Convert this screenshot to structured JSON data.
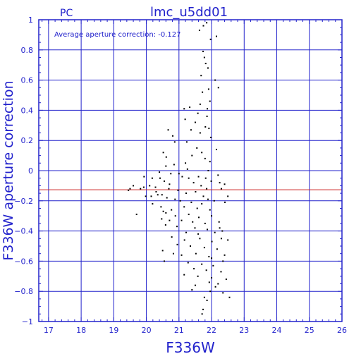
{
  "chart_data": {
    "type": "scatter",
    "title": "lmc_u5dd01",
    "corner_label": "PC",
    "annotation": "Average aperture correction: -0.127",
    "xlabel": "F336W",
    "ylabel": "F336W aperture correction",
    "xlim": [
      16.7,
      26
    ],
    "ylim": [
      -1,
      1
    ],
    "x_ticks": [
      17,
      18,
      19,
      20,
      21,
      22,
      23,
      24,
      25,
      26
    ],
    "y_ticks": [
      -1,
      -0.8,
      -0.6,
      -0.4,
      -0.2,
      0,
      0.2,
      0.4,
      0.6,
      0.8,
      1
    ],
    "y_tick_labels": [
      "−1",
      "−0.8",
      "−0.6",
      "−0.4",
      "−0.2",
      "0",
      "0.2",
      "0.4",
      "0.6",
      "0.8",
      "1"
    ],
    "grid": true,
    "reference_line": {
      "y": -0.127,
      "color": "#cc2222"
    },
    "colors": {
      "axes": "#2222cc",
      "grid": "#2222cc",
      "points": "#000000"
    },
    "series": [
      {
        "points": [
          [
            21.85,
            0.98
          ],
          [
            21.63,
            0.93
          ],
          [
            21.75,
            0.96
          ],
          [
            21.97,
            0.87
          ],
          [
            22.15,
            0.89
          ],
          [
            21.74,
            0.79
          ],
          [
            21.78,
            0.75
          ],
          [
            21.82,
            0.71
          ],
          [
            21.89,
            0.68
          ],
          [
            22.11,
            0.6
          ],
          [
            21.68,
            0.63
          ],
          [
            21.91,
            0.54
          ],
          [
            21.72,
            0.52
          ],
          [
            22.21,
            0.55
          ],
          [
            21.65,
            0.44
          ],
          [
            21.87,
            0.41
          ],
          [
            21.95,
            0.46
          ],
          [
            21.33,
            0.42
          ],
          [
            21.16,
            0.41
          ],
          [
            21.58,
            0.38
          ],
          [
            21.86,
            0.36
          ],
          [
            21.19,
            0.34
          ],
          [
            21.5,
            0.32
          ],
          [
            21.81,
            0.29
          ],
          [
            21.37,
            0.27
          ],
          [
            21.65,
            0.25
          ],
          [
            21.92,
            0.28
          ],
          [
            21.98,
            0.22
          ],
          [
            20.67,
            0.27
          ],
          [
            20.81,
            0.23
          ],
          [
            20.87,
            0.19
          ],
          [
            21.24,
            0.19
          ],
          [
            21.55,
            0.15
          ],
          [
            21.7,
            0.12
          ],
          [
            22.15,
            0.14
          ],
          [
            21.4,
            0.1
          ],
          [
            21.8,
            0.08
          ],
          [
            20.52,
            0.12
          ],
          [
            20.61,
            0.09
          ],
          [
            20.85,
            0.04
          ],
          [
            21.2,
            0.05
          ],
          [
            21.95,
            0.06
          ],
          [
            21.26,
            0.01
          ],
          [
            21.9,
            0.0
          ],
          [
            20.6,
            0.03
          ],
          [
            20.4,
            -0.01
          ],
          [
            20.75,
            -0.02
          ],
          [
            21.1,
            -0.04
          ],
          [
            21.6,
            -0.04
          ],
          [
            22.2,
            -0.03
          ],
          [
            21.82,
            -0.05
          ],
          [
            19.93,
            -0.04
          ],
          [
            20.18,
            -0.05
          ],
          [
            20.42,
            -0.05
          ],
          [
            20.55,
            -0.07
          ],
          [
            20.71,
            -0.09
          ],
          [
            21.45,
            -0.08
          ],
          [
            21.99,
            -0.07
          ],
          [
            22.25,
            -0.08
          ],
          [
            22.4,
            -0.09
          ],
          [
            20.1,
            -0.1
          ],
          [
            20.28,
            -0.11
          ],
          [
            20.69,
            -0.12
          ],
          [
            20.97,
            -0.13
          ],
          [
            21.68,
            -0.1
          ],
          [
            21.85,
            -0.12
          ],
          [
            22.3,
            -0.12
          ],
          [
            19.5,
            -0.12
          ],
          [
            19.6,
            -0.1
          ],
          [
            19.82,
            -0.12
          ],
          [
            19.92,
            -0.11
          ],
          [
            20.3,
            -0.14
          ],
          [
            20.35,
            -0.16
          ],
          [
            20.48,
            -0.16
          ],
          [
            21.22,
            -0.15
          ],
          [
            21.51,
            -0.14
          ],
          [
            21.75,
            -0.17
          ],
          [
            19.45,
            -0.13
          ],
          [
            19.98,
            -0.17
          ],
          [
            20.15,
            -0.17
          ],
          [
            20.63,
            -0.18
          ],
          [
            20.88,
            -0.19
          ],
          [
            21.04,
            -0.2
          ],
          [
            21.38,
            -0.21
          ],
          [
            21.89,
            -0.19
          ],
          [
            22.08,
            -0.2
          ],
          [
            22.41,
            -0.21
          ],
          [
            22.5,
            -0.17
          ],
          [
            20.19,
            -0.22
          ],
          [
            20.45,
            -0.24
          ],
          [
            20.77,
            -0.26
          ],
          [
            21.16,
            -0.24
          ],
          [
            21.56,
            -0.25
          ],
          [
            21.95,
            -0.26
          ],
          [
            20.52,
            -0.27
          ],
          [
            20.6,
            -0.28
          ],
          [
            19.7,
            -0.29
          ],
          [
            20.89,
            -0.3
          ],
          [
            21.3,
            -0.29
          ],
          [
            21.61,
            -0.31
          ],
          [
            22.0,
            -0.3
          ],
          [
            20.47,
            -0.32
          ],
          [
            20.71,
            -0.33
          ],
          [
            21.08,
            -0.33
          ],
          [
            21.42,
            -0.34
          ],
          [
            21.8,
            -0.35
          ],
          [
            22.23,
            -0.34
          ],
          [
            20.59,
            -0.36
          ],
          [
            20.94,
            -0.37
          ],
          [
            21.49,
            -0.38
          ],
          [
            21.87,
            -0.39
          ],
          [
            22.33,
            -0.4
          ],
          [
            21.22,
            -0.41
          ],
          [
            21.59,
            -0.42
          ],
          [
            22.1,
            -0.41
          ],
          [
            20.78,
            -0.44
          ],
          [
            21.17,
            -0.46
          ],
          [
            21.64,
            -0.45
          ],
          [
            22.01,
            -0.47
          ],
          [
            22.5,
            -0.46
          ],
          [
            20.95,
            -0.49
          ],
          [
            21.35,
            -0.5
          ],
          [
            21.78,
            -0.51
          ],
          [
            22.17,
            -0.52
          ],
          [
            20.5,
            -0.53
          ],
          [
            20.83,
            -0.55
          ],
          [
            21.08,
            -0.56
          ],
          [
            21.52,
            -0.55
          ],
          [
            21.92,
            -0.57
          ],
          [
            22.4,
            -0.56
          ],
          [
            20.55,
            -0.6
          ],
          [
            21.28,
            -0.61
          ],
          [
            21.7,
            -0.62
          ],
          [
            22.05,
            -0.63
          ],
          [
            21.46,
            -0.65
          ],
          [
            21.84,
            -0.66
          ],
          [
            22.29,
            -0.67
          ],
          [
            21.16,
            -0.69
          ],
          [
            21.58,
            -0.7
          ],
          [
            22.0,
            -0.71
          ],
          [
            22.45,
            -0.72
          ],
          [
            21.93,
            -0.74
          ],
          [
            21.5,
            -0.76
          ],
          [
            22.12,
            -0.77
          ],
          [
            21.4,
            -0.79
          ],
          [
            21.96,
            -0.8
          ],
          [
            22.35,
            -0.81
          ],
          [
            21.78,
            -0.84
          ],
          [
            22.55,
            -0.84
          ],
          [
            21.86,
            -0.86
          ],
          [
            21.74,
            -0.92
          ],
          [
            21.71,
            -0.95
          ],
          [
            22.25,
            -0.38
          ],
          [
            22.35,
            -0.6
          ],
          [
            22.3,
            -0.45
          ],
          [
            22.2,
            -0.75
          ],
          [
            21.7,
            -0.22
          ],
          [
            21.3,
            -0.05
          ],
          [
            21.0,
            -0.02
          ],
          [
            22.0,
            -0.58
          ]
        ]
      }
    ]
  }
}
